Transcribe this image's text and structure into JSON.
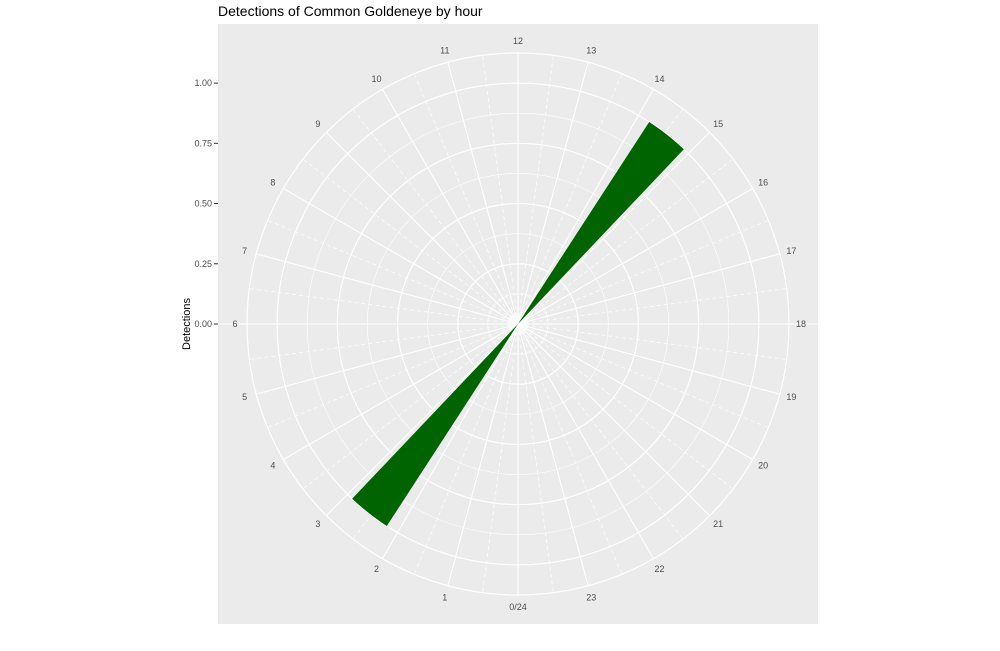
{
  "chart_data": {
    "type": "polar-bar",
    "title": "Detections of Common Goldeneye by hour",
    "ylabel": "Detections",
    "ylim": [
      0,
      1.125
    ],
    "y_ticks": [
      {
        "value": 0,
        "label": "0.00"
      },
      {
        "value": 0.25,
        "label": "0.25"
      },
      {
        "value": 0.5,
        "label": "0.50"
      },
      {
        "value": 0.75,
        "label": "0.75"
      },
      {
        "value": 1.0,
        "label": "1.00"
      }
    ],
    "hour_labels": [
      "0/24",
      "1",
      "2",
      "3",
      "4",
      "5",
      "6",
      "7",
      "8",
      "9",
      "10",
      "11",
      "12",
      "13",
      "14",
      "15",
      "16",
      "17",
      "18",
      "19",
      "20",
      "21",
      "22",
      "23"
    ],
    "bars": [
      {
        "hour_start": 2.2,
        "hour_end": 2.9,
        "value": 1.0
      },
      {
        "hour_start": 14.2,
        "hour_end": 14.9,
        "value": 1.0
      }
    ],
    "bar_color": "#006400",
    "panel_color": "#ebebeb",
    "grid_color": "#ffffff",
    "grid": true
  }
}
